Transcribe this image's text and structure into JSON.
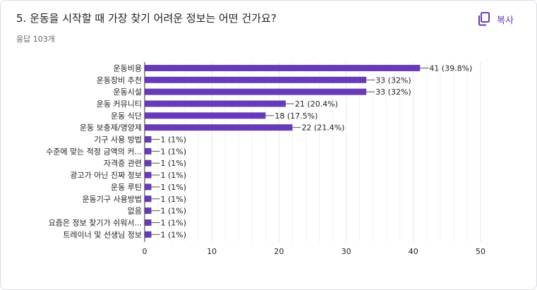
{
  "question": {
    "title": "5. 운동을 시작할 때 가장 찾기 어려운 정보는 어떤 건가요?",
    "response_count": "응답 103개",
    "copy_label": "복사",
    "copy_icon": "copy-icon"
  },
  "colors": {
    "bar": "#673ab7",
    "grid": "#e8e8e8",
    "axis": "#333333",
    "text": "#222222"
  },
  "chart_data": {
    "type": "bar",
    "orientation": "horizontal",
    "categories": [
      "운동비용",
      "운동장비 추천",
      "운동시설",
      "운동 커뮤니티",
      "운동 식단",
      "운동 보충제/영양제",
      "기구 사용 방법",
      "수준에 맞는 적정 금액의 커...",
      "자격증 관련",
      "광고가 아닌 진짜 정보",
      "운동 루틴",
      "운동기구 사용방법",
      "없음",
      "요즘은 정보 찾기가 쉬워서...",
      "트레이너 및 선생님 정보"
    ],
    "values": [
      41,
      33,
      33,
      21,
      18,
      22,
      1,
      1,
      1,
      1,
      1,
      1,
      1,
      1,
      1
    ],
    "data_labels": [
      "41 (39.8%)",
      "33 (32%)",
      "33 (32%)",
      "21 (20.4%)",
      "18 (17.5%)",
      "22 (21.4%)",
      "1 (1%)",
      "1 (1%)",
      "1 (1%)",
      "1 (1%)",
      "1 (1%)",
      "1 (1%)",
      "1 (1%)",
      "1 (1%)",
      "1 (1%)"
    ],
    "xlim": [
      0,
      50
    ],
    "xticks": [
      "0",
      "10",
      "20",
      "30",
      "40",
      "50"
    ],
    "grid": true,
    "title": "",
    "xlabel": "",
    "ylabel": ""
  }
}
